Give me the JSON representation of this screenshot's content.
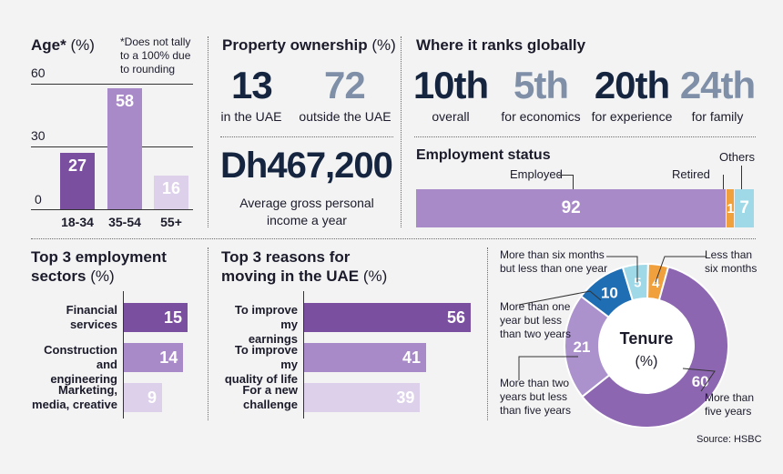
{
  "age": {
    "title": "Age*",
    "unit": "(%)",
    "note": "*Does not tally to a 100% due to rounding",
    "axis_ticks": [
      "60",
      "30",
      "0"
    ],
    "bars": [
      {
        "label": "18-34",
        "value": "27",
        "color": "#7b4f9f"
      },
      {
        "label": "35-54",
        "value": "58",
        "color": "#a98ac8"
      },
      {
        "label": "55+",
        "value": "16",
        "color": "#ddd0ea"
      }
    ]
  },
  "property": {
    "title": "Property ownership",
    "unit": "(%)",
    "uae_value": "13",
    "uae_label": "in the UAE",
    "outside_value": "72",
    "outside_label": "outside the UAE"
  },
  "income": {
    "value": "Dh467,200",
    "label_line1": "Average gross personal",
    "label_line2": "income a year"
  },
  "ranks": {
    "title": "Where it ranks globally",
    "items": [
      {
        "value": "10th",
        "label": "overall",
        "color": "#15243f"
      },
      {
        "value": "5th",
        "label": "for economics",
        "color": "#7e8fa7"
      },
      {
        "value": "20th",
        "label": "for experience",
        "color": "#15243f"
      },
      {
        "value": "24th",
        "label": "for family",
        "color": "#7e8fa7"
      }
    ]
  },
  "employment": {
    "title": "Employment status",
    "employed_label": "Employed",
    "employed_value": "92",
    "retired_label": "Retired",
    "retired_value": "1",
    "others_label": "Others",
    "others_value": "7"
  },
  "sectors": {
    "title_line1": "Top 3 employment",
    "title_line2": "sectors",
    "unit": "(%)",
    "items": [
      {
        "label_line1": "Financial",
        "label_line2": "services",
        "value": "15",
        "color": "#7b4f9f"
      },
      {
        "label_line1": "Construction",
        "label_line2": "and engineering",
        "value": "14",
        "color": "#a98ac8"
      },
      {
        "label_line1": "Marketing,",
        "label_line2": "media, creative",
        "value": "9",
        "color": "#ddd0ea"
      }
    ]
  },
  "reasons": {
    "title_line1": "Top 3 reasons for",
    "title_line2": "moving in the UAE",
    "unit": "(%)",
    "items": [
      {
        "label_line1": "To improve my",
        "label_line2": "earnings",
        "value": "56",
        "color": "#7b4f9f"
      },
      {
        "label_line1": "To improve my",
        "label_line2": "quality of life",
        "value": "41",
        "color": "#a98ac8"
      },
      {
        "label_line1": "For a new",
        "label_line2": "challenge",
        "value": "39",
        "color": "#ddd0ea"
      }
    ]
  },
  "tenure": {
    "title": "Tenure",
    "unit": "(%)",
    "slices": [
      {
        "value": "4",
        "label_line1": "Less than",
        "label_line2": "six months",
        "color": "#f0a03c"
      },
      {
        "value": "60",
        "label_line1": "More than",
        "label_line2": "five years",
        "color": "#8c66b0"
      },
      {
        "value": "21",
        "label_line1": "More than two",
        "label_line2": "years but less",
        "label_line3": "than five years",
        "color": "#ab92cc"
      },
      {
        "value": "10",
        "label_line1": "More than one",
        "label_line2": "year but less",
        "label_line3": "than two years",
        "color": "#1f6db3"
      },
      {
        "value": "5",
        "label_line1": "More than six months",
        "label_line2": "but less than one year",
        "color": "#9fd8e6"
      }
    ]
  },
  "source": "Source: HSBC",
  "chart_data": [
    {
      "type": "bar",
      "title": "Age*",
      "ylabel": "(%)",
      "categories": [
        "18-34",
        "35-54",
        "55+"
      ],
      "values": [
        27,
        58,
        16
      ],
      "ylim": [
        0,
        60
      ]
    },
    {
      "type": "bar",
      "title": "Employment status",
      "categories": [
        "Employed",
        "Retired",
        "Others"
      ],
      "values": [
        92,
        1,
        7
      ]
    },
    {
      "type": "bar",
      "title": "Top 3 employment sectors (%)",
      "categories": [
        "Financial services",
        "Construction and engineering",
        "Marketing, media, creative"
      ],
      "values": [
        15,
        14,
        9
      ]
    },
    {
      "type": "bar",
      "title": "Top 3 reasons for moving in the UAE (%)",
      "categories": [
        "To improve my earnings",
        "To improve my quality of life",
        "For a new challenge"
      ],
      "values": [
        56,
        41,
        39
      ]
    },
    {
      "type": "pie",
      "title": "Tenure (%)",
      "categories": [
        "Less than six months",
        "More than five years",
        "More than two years but less than five years",
        "More than one year but less than two years",
        "More than six months but less than one year"
      ],
      "values": [
        4,
        60,
        21,
        10,
        5
      ]
    }
  ]
}
